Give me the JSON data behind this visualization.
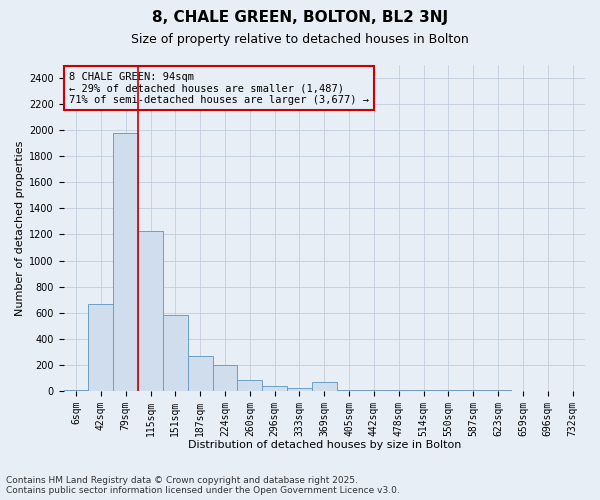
{
  "title_line1": "8, CHALE GREEN, BOLTON, BL2 3NJ",
  "title_line2": "Size of property relative to detached houses in Bolton",
  "xlabel": "Distribution of detached houses by size in Bolton",
  "ylabel": "Number of detached properties",
  "bar_labels": [
    "6sqm",
    "42sqm",
    "79sqm",
    "115sqm",
    "151sqm",
    "187sqm",
    "224sqm",
    "260sqm",
    "296sqm",
    "333sqm",
    "369sqm",
    "405sqm",
    "442sqm",
    "478sqm",
    "514sqm",
    "550sqm",
    "587sqm",
    "623sqm",
    "659sqm",
    "696sqm",
    "732sqm"
  ],
  "bar_values": [
    5,
    670,
    1980,
    1230,
    580,
    270,
    200,
    80,
    35,
    20,
    70,
    10,
    10,
    10,
    10,
    5,
    10,
    5,
    0,
    0,
    0
  ],
  "bar_color": "#cfdded",
  "bar_edge_color": "#6b9ec8",
  "grid_color": "#bbc8da",
  "background_color": "#e8eef6",
  "vline_color": "#cc0000",
  "annotation_text": "8 CHALE GREEN: 94sqm\n← 29% of detached houses are smaller (1,487)\n71% of semi-detached houses are larger (3,677) →",
  "annotation_box_edge_color": "#cc0000",
  "ylim": [
    0,
    2500
  ],
  "yticks": [
    0,
    200,
    400,
    600,
    800,
    1000,
    1200,
    1400,
    1600,
    1800,
    2000,
    2200,
    2400
  ],
  "footer_text": "Contains HM Land Registry data © Crown copyright and database right 2025.\nContains public sector information licensed under the Open Government Licence v3.0.",
  "title_fontsize": 11,
  "subtitle_fontsize": 9,
  "axis_label_fontsize": 8,
  "tick_fontsize": 7,
  "annotation_fontsize": 7.5,
  "footer_fontsize": 6.5
}
